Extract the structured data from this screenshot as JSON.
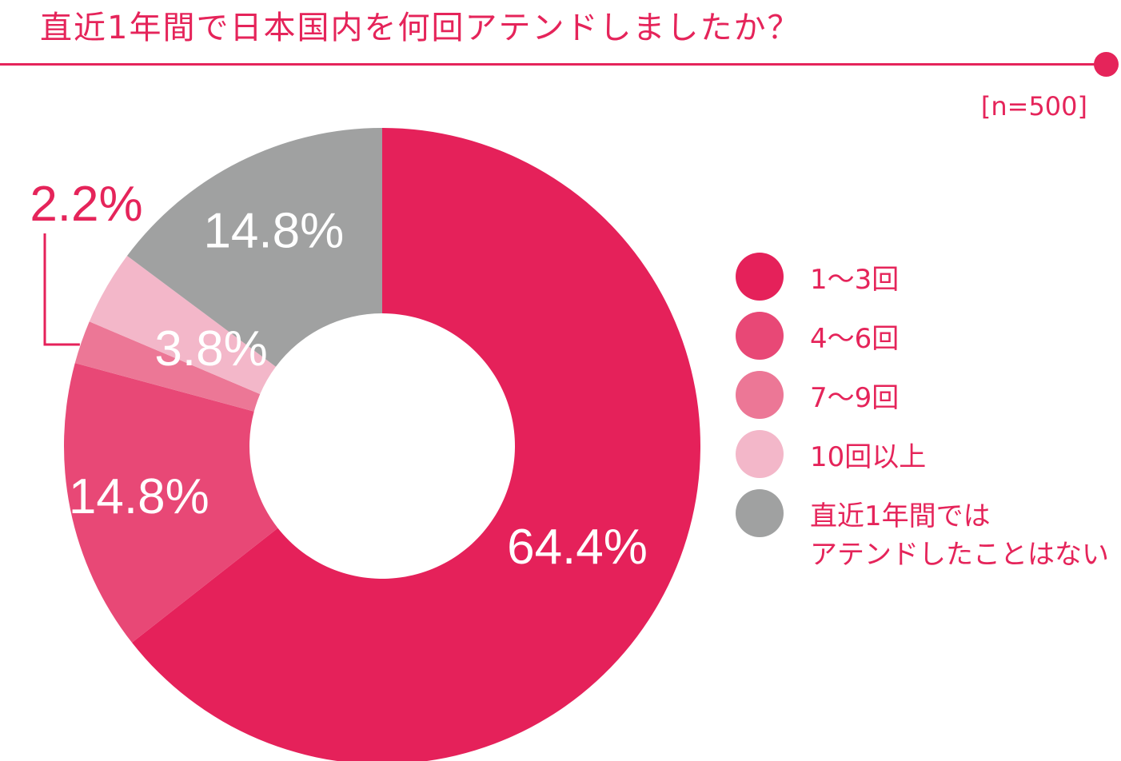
{
  "title": "直近1年間で日本国内を何回アテンドしましたか？",
  "sample_size": "[n=500]",
  "colors": {
    "accent": "#e5245a"
  },
  "chart_data": {
    "type": "pie",
    "donut": true,
    "title": "直近1年間で日本国内を何回アテンドしましたか？",
    "categories": [
      "1〜3回",
      "4〜6回",
      "7〜9回",
      "10回以上",
      "直近1年間では\nアテンドしたことはない"
    ],
    "values": [
      64.4,
      14.8,
      2.2,
      3.8,
      14.8
    ],
    "labels": [
      "64.4%",
      "14.8%",
      "2.2%",
      "3.8%",
      "14.8%"
    ],
    "colors": [
      "#e5215a",
      "#e84876",
      "#ec7796",
      "#f3b7c9",
      "#a0a1a1"
    ],
    "legend_position": "right"
  }
}
